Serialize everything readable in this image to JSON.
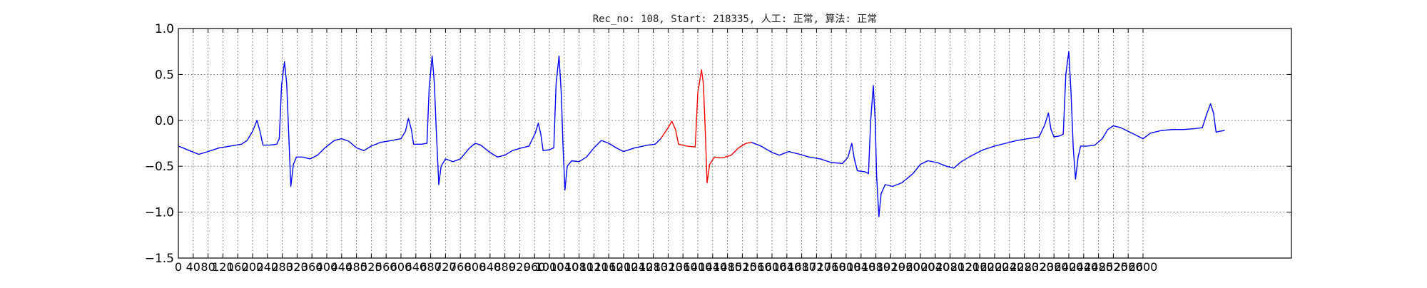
{
  "chart_data": {
    "type": "line",
    "title": "Rec_no: 108, Start: 218335, 人工: 正常, 算法: 正常",
    "xlabel": "",
    "ylabel": "",
    "xlim": [
      0,
      3000
    ],
    "ylim": [
      -1.5,
      1.0
    ],
    "yticks": [
      "1.0",
      "0.5",
      "0.0",
      "−0.5",
      "−1.0",
      "−1.5"
    ],
    "ytick_values": [
      1.0,
      0.5,
      0.0,
      -0.5,
      -1.0,
      -1.5
    ],
    "xtick_labels": [
      "0",
      "40",
      "80",
      "120",
      "160",
      "200",
      "240",
      "280",
      "320",
      "360",
      "400",
      "440",
      "480",
      "520",
      "560",
      "600",
      "640",
      "680",
      "720",
      "760",
      "800",
      "840",
      "880",
      "920",
      "960",
      "1000",
      "1040",
      "1080",
      "1120",
      "1160",
      "1200",
      "1240",
      "1280",
      "1320",
      "1360",
      "1400",
      "1440",
      "1480",
      "1520",
      "1560",
      "1600",
      "1640",
      "1680",
      "1720",
      "1760",
      "1800",
      "1840",
      "1880",
      "1920",
      "1960",
      "2000",
      "2040",
      "2080",
      "2120",
      "2160",
      "2200",
      "2240",
      "2280",
      "2320",
      "2360",
      "2400",
      "2440",
      "2480",
      "2520",
      "2560",
      "2600"
    ],
    "grid": true,
    "grid_style": "dotted",
    "series": [
      {
        "color": "#0000ff",
        "points": [
          [
            0,
            -0.28
          ],
          [
            30,
            -0.33
          ],
          [
            55,
            -0.37
          ],
          [
            80,
            -0.34
          ],
          [
            110,
            -0.3
          ],
          [
            140,
            -0.28
          ],
          [
            170,
            -0.26
          ],
          [
            185,
            -0.22
          ],
          [
            200,
            -0.12
          ],
          [
            212,
            0.0
          ],
          [
            220,
            -0.12
          ],
          [
            228,
            -0.27
          ],
          [
            245,
            -0.27
          ],
          [
            265,
            -0.26
          ],
          [
            272,
            -0.2
          ],
          [
            278,
            0.38
          ],
          [
            286,
            0.64
          ],
          [
            292,
            0.4
          ],
          [
            297,
            -0.1
          ],
          [
            303,
            -0.72
          ],
          [
            310,
            -0.48
          ],
          [
            318,
            -0.4
          ],
          [
            335,
            -0.4
          ],
          [
            355,
            -0.42
          ],
          [
            375,
            -0.38
          ],
          [
            395,
            -0.3
          ],
          [
            420,
            -0.22
          ],
          [
            440,
            -0.2
          ],
          [
            460,
            -0.23
          ],
          [
            480,
            -0.3
          ],
          [
            500,
            -0.33
          ],
          [
            520,
            -0.28
          ],
          [
            545,
            -0.24
          ],
          [
            575,
            -0.22
          ],
          [
            600,
            -0.2
          ],
          [
            612,
            -0.12
          ],
          [
            620,
            0.02
          ],
          [
            628,
            -0.1
          ],
          [
            634,
            -0.26
          ],
          [
            655,
            -0.26
          ],
          [
            670,
            -0.25
          ],
          [
            676,
            0.35
          ],
          [
            684,
            0.7
          ],
          [
            690,
            0.4
          ],
          [
            695,
            -0.1
          ],
          [
            702,
            -0.7
          ],
          [
            708,
            -0.5
          ],
          [
            720,
            -0.42
          ],
          [
            740,
            -0.45
          ],
          [
            760,
            -0.42
          ],
          [
            785,
            -0.3
          ],
          [
            800,
            -0.25
          ],
          [
            815,
            -0.27
          ],
          [
            840,
            -0.35
          ],
          [
            860,
            -0.4
          ],
          [
            880,
            -0.38
          ],
          [
            900,
            -0.33
          ],
          [
            925,
            -0.3
          ],
          [
            945,
            -0.28
          ],
          [
            962,
            -0.14
          ],
          [
            970,
            -0.03
          ],
          [
            977,
            -0.15
          ],
          [
            983,
            -0.33
          ],
          [
            1000,
            -0.32
          ],
          [
            1012,
            -0.3
          ],
          [
            1018,
            0.4
          ],
          [
            1026,
            0.7
          ],
          [
            1032,
            0.3
          ],
          [
            1037,
            -0.3
          ],
          [
            1042,
            -0.76
          ],
          [
            1048,
            -0.5
          ],
          [
            1060,
            -0.44
          ],
          [
            1080,
            -0.45
          ],
          [
            1100,
            -0.4
          ],
          [
            1120,
            -0.3
          ],
          [
            1140,
            -0.22
          ],
          [
            1160,
            -0.25
          ],
          [
            1180,
            -0.3
          ],
          [
            1200,
            -0.34
          ],
          [
            1230,
            -0.3
          ],
          [
            1265,
            -0.27
          ],
          [
            1285,
            -0.26
          ],
          [
            1300,
            -0.2
          ]
        ]
      },
      {
        "color": "#ff0000",
        "points": [
          [
            1300,
            -0.2
          ],
          [
            1320,
            -0.08
          ],
          [
            1330,
            -0.01
          ],
          [
            1340,
            -0.1
          ],
          [
            1348,
            -0.26
          ],
          [
            1370,
            -0.28
          ],
          [
            1393,
            -0.29
          ],
          [
            1400,
            0.3
          ],
          [
            1410,
            0.55
          ],
          [
            1415,
            0.4
          ],
          [
            1420,
            -0.1
          ],
          [
            1425,
            -0.68
          ],
          [
            1432,
            -0.48
          ],
          [
            1445,
            -0.4
          ],
          [
            1465,
            -0.41
          ],
          [
            1490,
            -0.38
          ],
          [
            1510,
            -0.3
          ],
          [
            1530,
            -0.25
          ],
          [
            1545,
            -0.24
          ]
        ]
      },
      {
        "color": "#0000ff",
        "points": [
          [
            1545,
            -0.24
          ],
          [
            1570,
            -0.28
          ],
          [
            1600,
            -0.35
          ],
          [
            1620,
            -0.38
          ],
          [
            1645,
            -0.34
          ],
          [
            1675,
            -0.37
          ],
          [
            1700,
            -0.4
          ],
          [
            1730,
            -0.42
          ],
          [
            1760,
            -0.46
          ],
          [
            1790,
            -0.47
          ],
          [
            1805,
            -0.4
          ],
          [
            1815,
            -0.25
          ],
          [
            1822,
            -0.42
          ],
          [
            1830,
            -0.55
          ],
          [
            1850,
            -0.56
          ],
          [
            1860,
            -0.58
          ],
          [
            1866,
            0.0
          ],
          [
            1873,
            0.38
          ],
          [
            1878,
            0.0
          ],
          [
            1882,
            -0.6
          ],
          [
            1888,
            -1.05
          ],
          [
            1894,
            -0.8
          ],
          [
            1905,
            -0.7
          ],
          [
            1925,
            -0.72
          ],
          [
            1950,
            -0.68
          ],
          [
            1980,
            -0.58
          ],
          [
            2000,
            -0.48
          ],
          [
            2020,
            -0.44
          ],
          [
            2045,
            -0.46
          ],
          [
            2070,
            -0.5
          ],
          [
            2090,
            -0.52
          ],
          [
            2110,
            -0.45
          ],
          [
            2140,
            -0.38
          ],
          [
            2170,
            -0.32
          ],
          [
            2200,
            -0.28
          ],
          [
            2230,
            -0.25
          ],
          [
            2260,
            -0.22
          ],
          [
            2290,
            -0.2
          ],
          [
            2320,
            -0.18
          ],
          [
            2335,
            -0.05
          ],
          [
            2345,
            0.08
          ],
          [
            2352,
            -0.1
          ],
          [
            2360,
            -0.18
          ],
          [
            2375,
            -0.17
          ],
          [
            2385,
            -0.15
          ],
          [
            2392,
            0.5
          ],
          [
            2400,
            0.75
          ],
          [
            2406,
            0.3
          ],
          [
            2412,
            -0.3
          ],
          [
            2418,
            -0.64
          ],
          [
            2425,
            -0.4
          ],
          [
            2432,
            -0.28
          ],
          [
            2450,
            -0.28
          ],
          [
            2470,
            -0.27
          ],
          [
            2490,
            -0.2
          ],
          [
            2505,
            -0.1
          ],
          [
            2520,
            -0.06
          ],
          [
            2540,
            -0.08
          ],
          [
            2560,
            -0.12
          ],
          [
            2580,
            -0.16
          ],
          [
            2600,
            -0.2
          ],
          [
            2620,
            -0.14
          ],
          [
            2650,
            -0.11
          ],
          [
            2680,
            -0.1
          ],
          [
            2710,
            -0.1
          ],
          [
            2740,
            -0.09
          ],
          [
            2760,
            -0.08
          ],
          [
            2770,
            0.05
          ],
          [
            2782,
            0.18
          ],
          [
            2790,
            0.08
          ],
          [
            2797,
            -0.13
          ],
          [
            2805,
            -0.12
          ],
          [
            2820,
            -0.11
          ]
        ]
      }
    ]
  }
}
